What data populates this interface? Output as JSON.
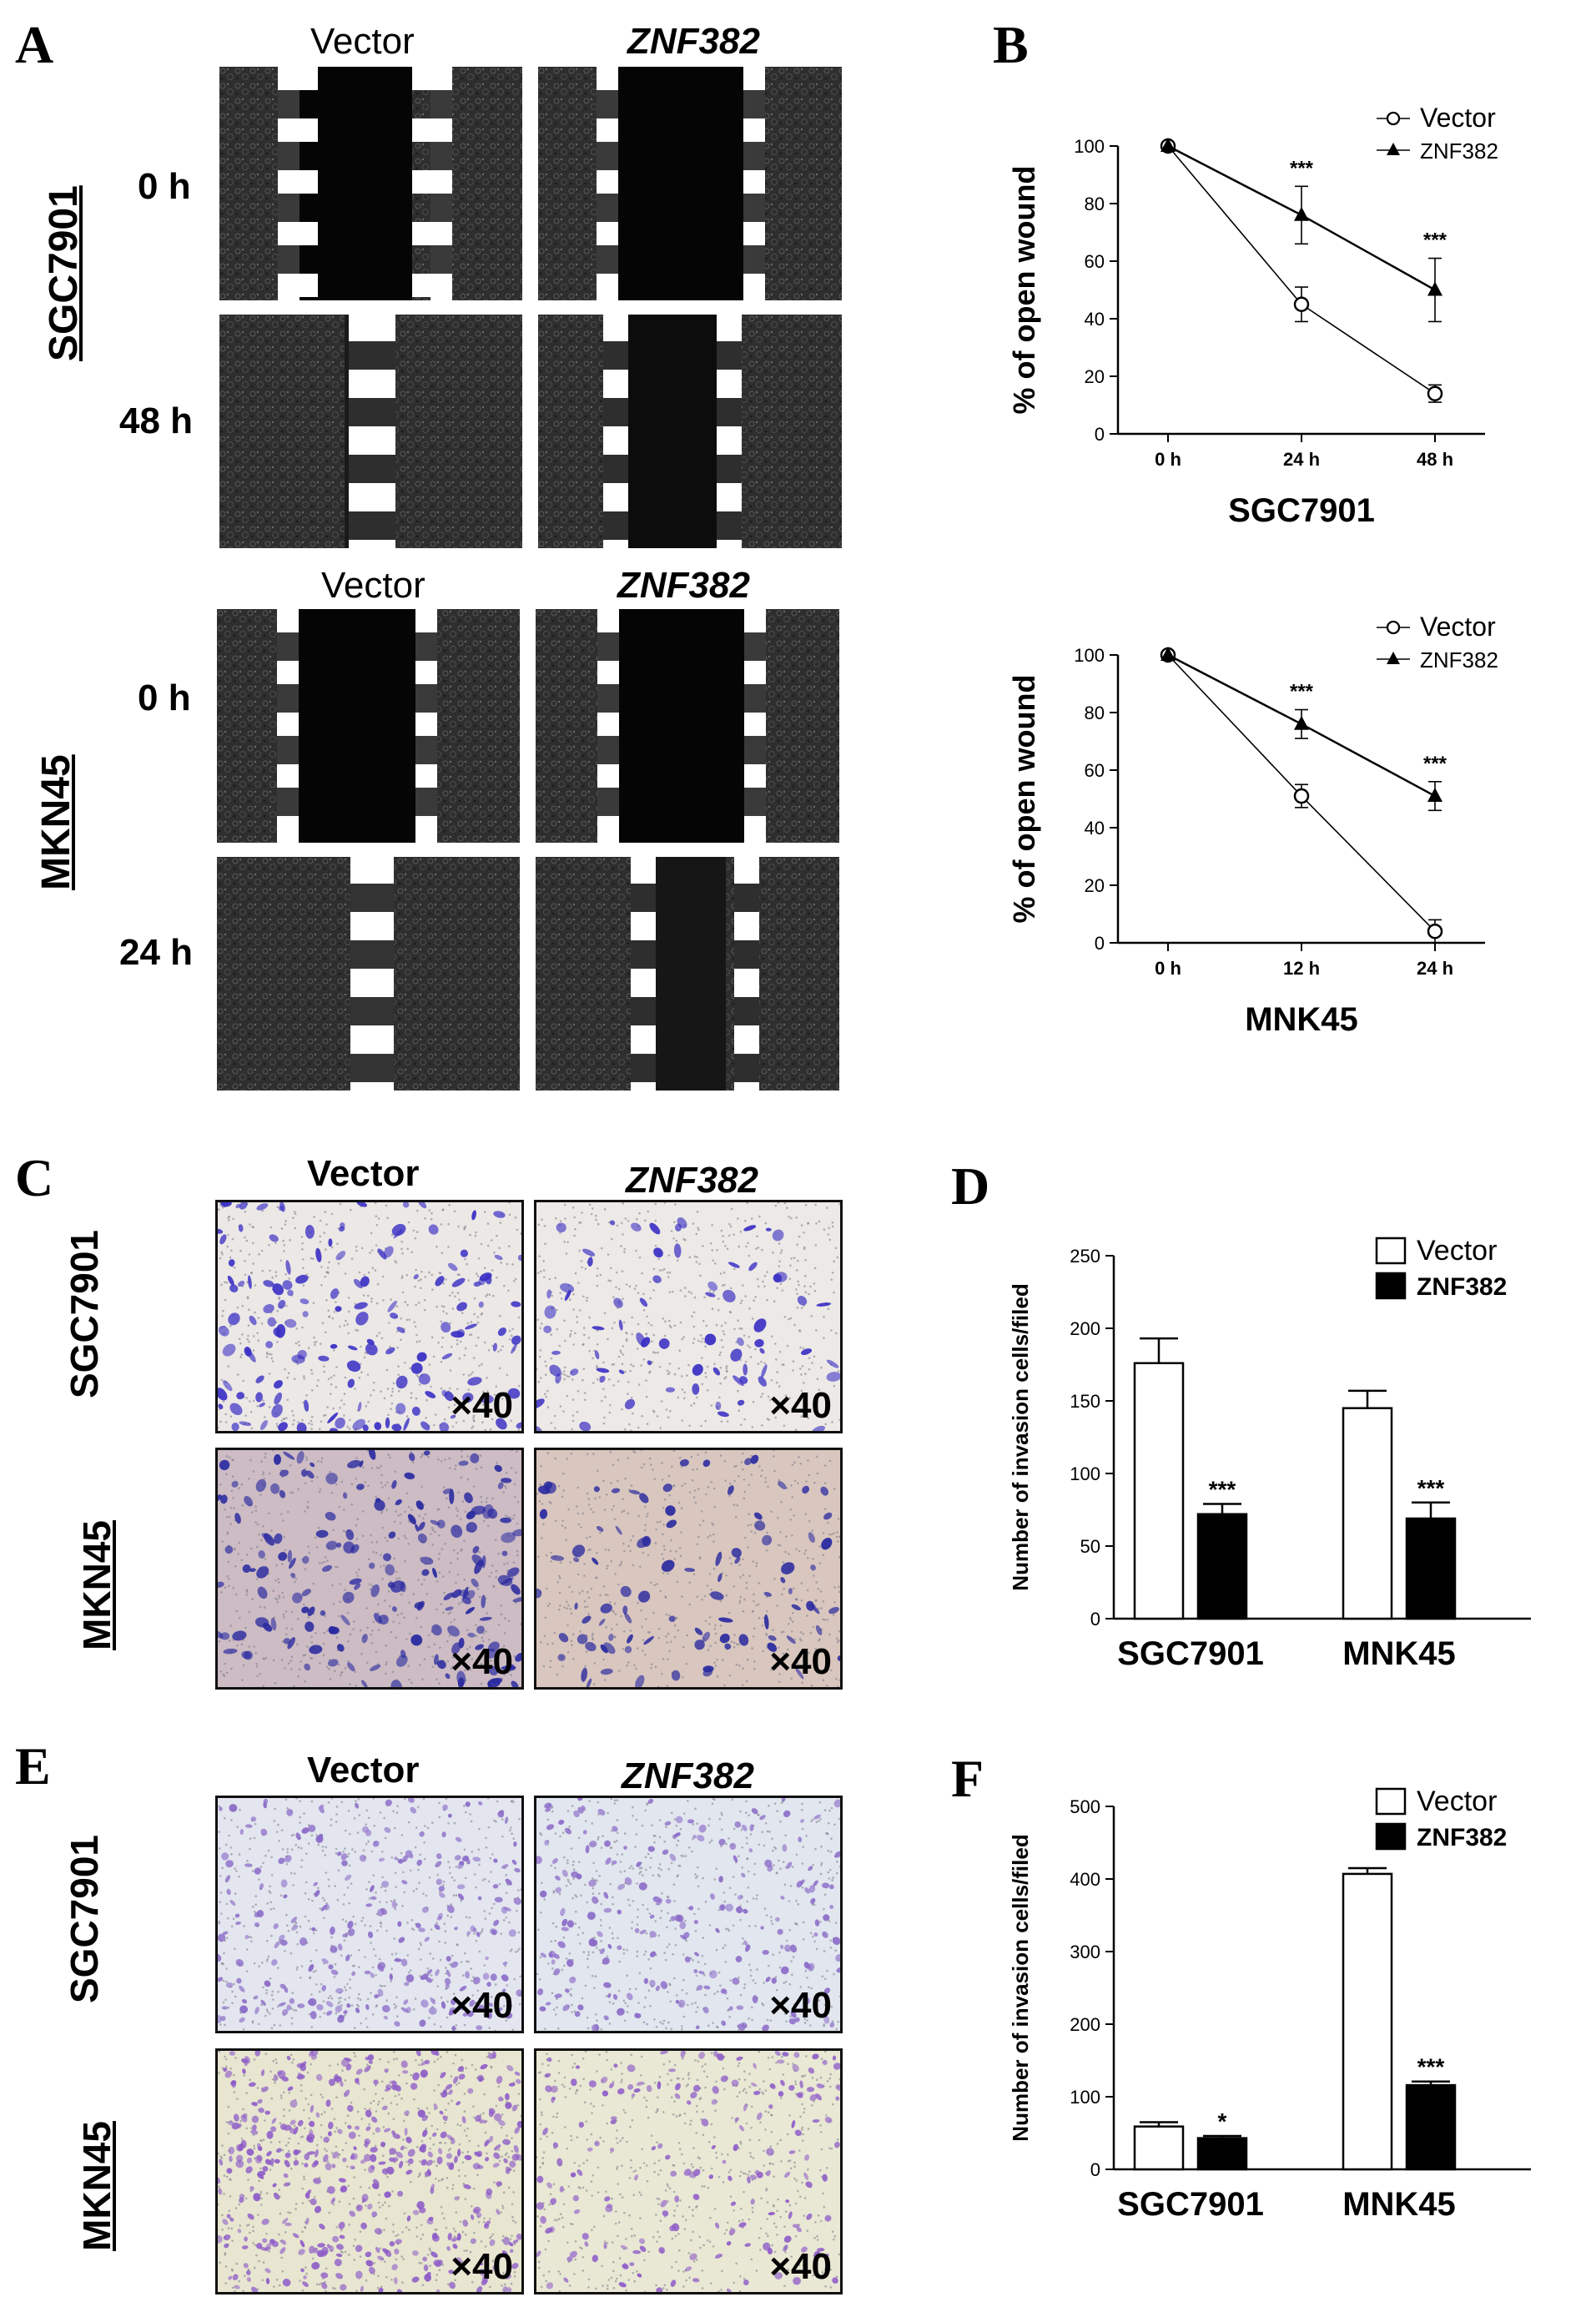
{
  "panels": {
    "A": {
      "letter": "A",
      "cols": [
        "Vector",
        "ZNF382"
      ],
      "lines": [
        {
          "name": "SGC7901",
          "times": [
            "0 h",
            "48 h"
          ]
        },
        {
          "name": "MKN45",
          "times": [
            "0 h",
            "24 h"
          ]
        }
      ]
    },
    "B": {
      "letter": "B"
    },
    "C": {
      "letter": "C",
      "cols": [
        "Vector",
        "ZNF382"
      ],
      "rows": [
        "SGC7901",
        "MKN45"
      ],
      "mag": "×40"
    },
    "D": {
      "letter": "D"
    },
    "E": {
      "letter": "E",
      "cols": [
        "Vector",
        "ZNF382"
      ],
      "rows": [
        "SGC7901",
        "MKN45"
      ],
      "mag": "×40"
    },
    "F": {
      "letter": "F"
    }
  },
  "colors": {
    "wound_bg": "#1a1a1a",
    "crystal_violet": "#3a2fc4",
    "stain_light": "#8a6ac8",
    "membrane": "#e9e6ec"
  },
  "chart_data": [
    {
      "id": "B1",
      "type": "line",
      "xlabel": "SGC7901",
      "ylabel": "% of open wound",
      "categories": [
        "0 h",
        "24 h",
        "48 h"
      ],
      "ylim": [
        0,
        100
      ],
      "yticks": [
        0,
        20,
        40,
        60,
        80,
        100
      ],
      "series": [
        {
          "name": "Vector",
          "values": [
            100,
            45,
            14
          ],
          "errors": [
            0,
            6,
            3
          ],
          "marker": "circle"
        },
        {
          "name": "ZNF382",
          "values": [
            100,
            76,
            50
          ],
          "errors": [
            0,
            10,
            11
          ],
          "marker": "triangle"
        }
      ],
      "annotations": [
        "",
        "***",
        "***"
      ],
      "legend": "top-right"
    },
    {
      "id": "B2",
      "type": "line",
      "xlabel": "MNK45",
      "ylabel": "% of open wound",
      "categories": [
        "0 h",
        "12 h",
        "24 h"
      ],
      "ylim": [
        0,
        100
      ],
      "yticks": [
        0,
        20,
        40,
        60,
        80,
        100
      ],
      "series": [
        {
          "name": "Vector",
          "values": [
            100,
            51,
            4
          ],
          "errors": [
            0,
            4,
            4
          ],
          "marker": "circle"
        },
        {
          "name": "ZNF382",
          "values": [
            100,
            76,
            51
          ],
          "errors": [
            0,
            5,
            5
          ],
          "marker": "triangle"
        }
      ],
      "annotations": [
        "",
        "***",
        "***"
      ],
      "legend": "top-right"
    },
    {
      "id": "D",
      "type": "bar",
      "ylabel": "Number  of invasion cells/filed",
      "categories": [
        "SGC7901",
        "MNK45"
      ],
      "ylim": [
        0,
        250
      ],
      "yticks": [
        0,
        50,
        100,
        150,
        200,
        250
      ],
      "series": [
        {
          "name": "Vector",
          "values": [
            176,
            145
          ],
          "errors": [
            17,
            12
          ],
          "fill": "white"
        },
        {
          "name": "ZNF382",
          "values": [
            72,
            69
          ],
          "errors": [
            7,
            11
          ],
          "fill": "black"
        }
      ],
      "annotations": [
        "***",
        "***"
      ],
      "legend": "top-right"
    },
    {
      "id": "F",
      "type": "bar",
      "ylabel": "Number  of invasion cells/filed",
      "categories": [
        "SGC7901",
        "MNK45"
      ],
      "ylim": [
        0,
        500
      ],
      "yticks": [
        0,
        100,
        200,
        300,
        400,
        500
      ],
      "series": [
        {
          "name": "Vector",
          "values": [
            59,
            407
          ],
          "errors": [
            6,
            8
          ],
          "fill": "white"
        },
        {
          "name": "ZNF382",
          "values": [
            43,
            116
          ],
          "errors": [
            3,
            5
          ],
          "fill": "black"
        }
      ],
      "annotations": [
        "*",
        "***"
      ],
      "legend": "top-right"
    }
  ]
}
